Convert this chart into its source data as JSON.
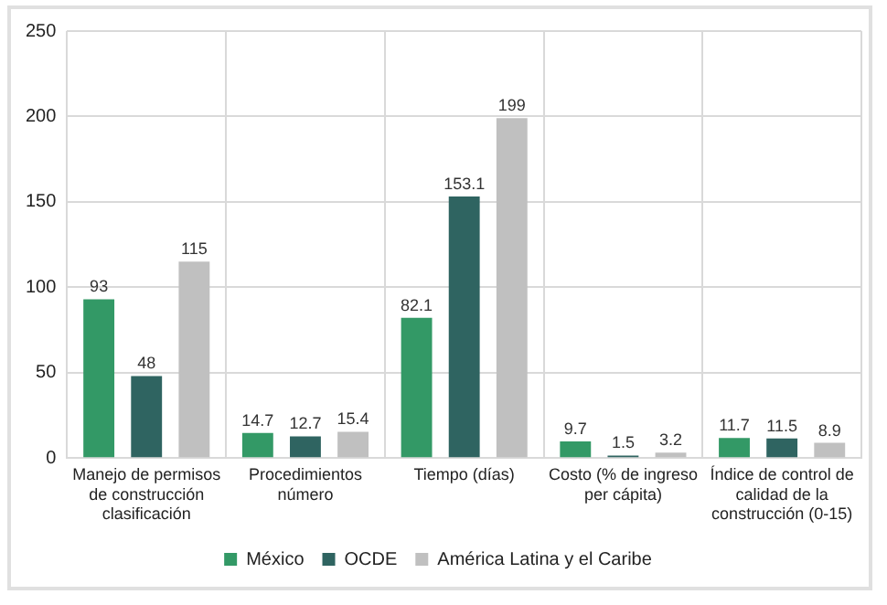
{
  "chart_data": {
    "type": "bar",
    "categories": [
      "Manejo de permisos de construcción clasificación",
      "Procedimientos número",
      "Tiempo (días)",
      "Costo (% de ingreso per cápita)",
      "Índice de control de calidad de la construcción (0-15)"
    ],
    "series": [
      {
        "name": "México",
        "color": "#339966",
        "values": [
          93,
          14.7,
          82.1,
          9.7,
          11.7
        ]
      },
      {
        "name": "OCDE",
        "color": "#2f6461",
        "values": [
          48,
          12.7,
          153.1,
          1.5,
          11.5
        ]
      },
      {
        "name": "América Latina y el Caribe",
        "color": "#c0c0c0",
        "values": [
          115,
          15.4,
          199,
          3.2,
          8.9
        ]
      }
    ],
    "ylim": [
      0,
      250
    ],
    "yticks": [
      0,
      50,
      100,
      150,
      200,
      250
    ],
    "grid": true,
    "legend": "bottom",
    "data_labels": true
  }
}
